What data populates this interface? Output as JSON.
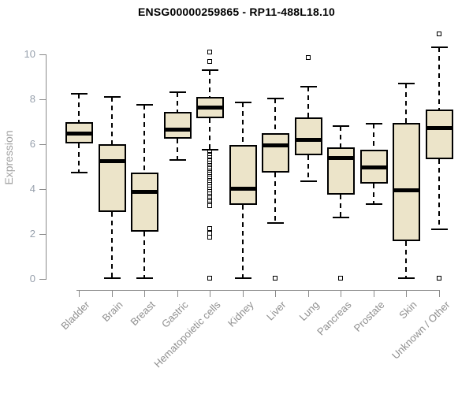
{
  "header": {
    "title": "ENSG00000259865 - RP11-488L18.10"
  },
  "colors": {
    "box_fill": "#ece4c9",
    "box_border": "#000000",
    "median": "#000000",
    "axis": "#8a8a8a",
    "y_tick_label": "#98a1ad",
    "x_label": "#8f8f8f",
    "ylabel": "#a3a3a3",
    "title": "#000000",
    "background": "#ffffff"
  },
  "chart_data": {
    "type": "boxplot",
    "title": "ENSG00000259865 - RP11-488L18.10",
    "xlabel": "",
    "ylabel": "Expression",
    "ylim": [
      0,
      11
    ],
    "yticks": [
      0,
      2,
      4,
      6,
      8,
      10
    ],
    "grid": false,
    "legend": "none",
    "categories": [
      "Bladder",
      "Brain",
      "Breast",
      "Gastric",
      "Hematopoietic cells",
      "Kidney",
      "Liver",
      "Lung",
      "Pancreas",
      "Prostate",
      "Skin",
      "Unknown / Other"
    ],
    "series": [
      {
        "name": "Bladder",
        "low": 4.75,
        "q1": 6.05,
        "median": 6.5,
        "q3": 7.0,
        "high": 8.25,
        "outliers": []
      },
      {
        "name": "Brain",
        "low": 0.05,
        "q1": 3.0,
        "median": 5.25,
        "q3": 6.0,
        "high": 8.1,
        "outliers": []
      },
      {
        "name": "Breast",
        "low": 0.05,
        "q1": 2.1,
        "median": 3.9,
        "q3": 4.75,
        "high": 7.75,
        "outliers": []
      },
      {
        "name": "Gastric",
        "low": 5.3,
        "q1": 6.25,
        "median": 6.65,
        "q3": 7.45,
        "high": 8.3,
        "outliers": []
      },
      {
        "name": "Hematopoietic cells",
        "low": 5.75,
        "q1": 7.15,
        "median": 7.65,
        "q3": 8.1,
        "high": 9.3,
        "outliers": [
          10.1,
          9.7,
          5.65,
          5.55,
          5.5,
          5.4,
          5.3,
          5.25,
          5.15,
          5.05,
          5.0,
          4.9,
          4.8,
          4.75,
          4.65,
          4.55,
          4.5,
          4.4,
          4.3,
          4.2,
          4.1,
          4.0,
          3.9,
          3.8,
          3.7,
          3.6,
          3.5,
          3.45,
          3.35,
          3.25,
          2.25,
          2.05,
          1.85,
          0.05
        ]
      },
      {
        "name": "Kidney",
        "low": 0.05,
        "q1": 3.3,
        "median": 4.05,
        "q3": 5.95,
        "high": 7.85,
        "outliers": []
      },
      {
        "name": "Liver",
        "low": 2.5,
        "q1": 4.75,
        "median": 5.95,
        "q3": 6.5,
        "high": 8.05,
        "outliers": [
          0.05
        ]
      },
      {
        "name": "Lung",
        "low": 4.35,
        "q1": 5.5,
        "median": 6.2,
        "q3": 7.2,
        "high": 8.55,
        "outliers": [
          9.85
        ]
      },
      {
        "name": "Pancreas",
        "low": 2.75,
        "q1": 3.75,
        "median": 5.4,
        "q3": 5.85,
        "high": 6.8,
        "outliers": [
          0.05
        ]
      },
      {
        "name": "Prostate",
        "low": 3.35,
        "q1": 4.25,
        "median": 5.0,
        "q3": 5.75,
        "high": 6.9,
        "outliers": []
      },
      {
        "name": "Skin",
        "low": 0.05,
        "q1": 1.7,
        "median": 3.95,
        "q3": 6.95,
        "high": 8.7,
        "outliers": []
      },
      {
        "name": "Unknown / Other",
        "low": 2.2,
        "q1": 5.35,
        "median": 6.75,
        "q3": 7.55,
        "high": 10.3,
        "outliers": [
          10.9,
          0.05
        ]
      }
    ]
  }
}
